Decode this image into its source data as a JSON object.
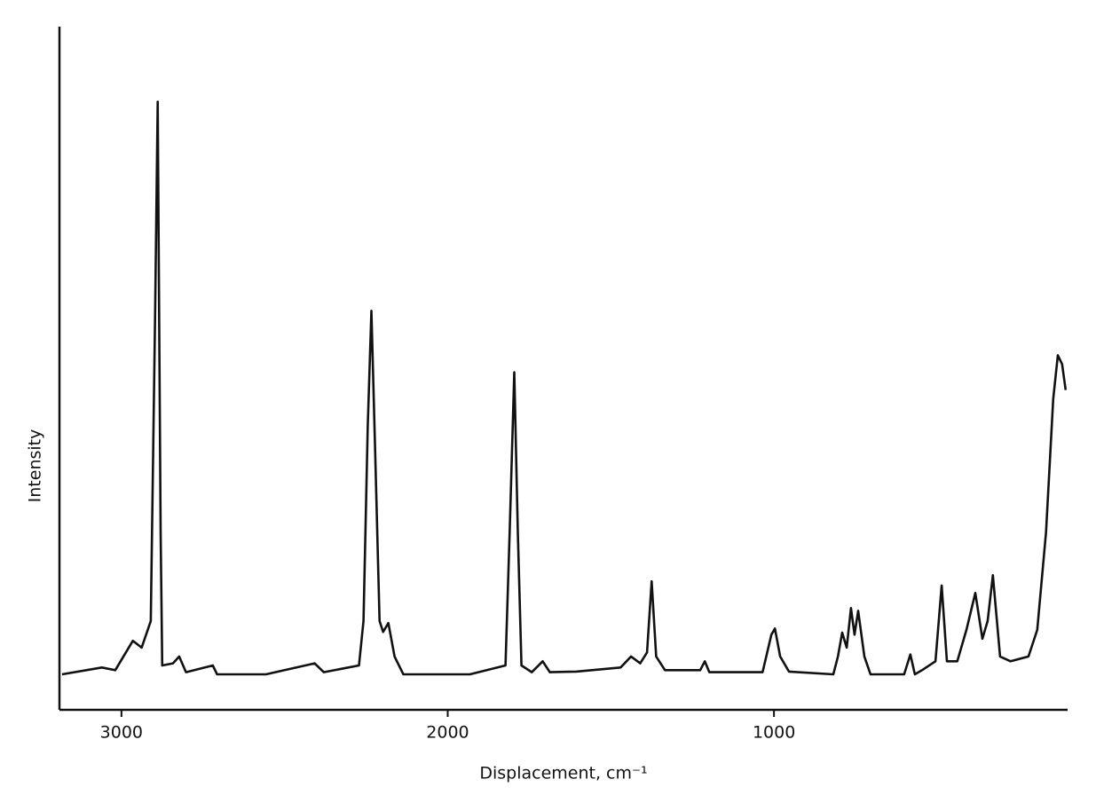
{
  "chart_data": {
    "type": "line",
    "x_label": "Displacement, cm⁻¹",
    "y_label": "Intensity",
    "xlim": [
      3190,
      100
    ],
    "xticks": [
      3000,
      2000,
      1000
    ],
    "ylim": [
      0,
      100
    ],
    "color": "#111111",
    "x": [
      3182,
      3060,
      3019,
      2965,
      2938,
      2910,
      2897,
      2889,
      2880,
      2875,
      2842,
      2823,
      2802,
      2720,
      2707,
      2557,
      2408,
      2380,
      2272,
      2258,
      2245,
      2234,
      2223,
      2209,
      2198,
      2182,
      2163,
      2136,
      1932,
      1823,
      1810,
      1796,
      1785,
      1774,
      1742,
      1709,
      1687,
      1606,
      1470,
      1438,
      1410,
      1389,
      1375,
      1361,
      1334,
      1226,
      1212,
      1198,
      1035,
      1008,
      997,
      981,
      954,
      818,
      804,
      791,
      777,
      764,
      753,
      742,
      723,
      704,
      601,
      582,
      568,
      546,
      505,
      486,
      470,
      438,
      410,
      383,
      361,
      345,
      329,
      307,
      275,
      220,
      193,
      166,
      144,
      130,
      117,
      106
    ],
    "values": [
      5.2,
      6.2,
      5.8,
      10.1,
      9.1,
      13.0,
      57.1,
      89.0,
      26.0,
      6.5,
      6.8,
      7.8,
      5.5,
      6.5,
      5.2,
      5.2,
      6.8,
      5.5,
      6.5,
      13.0,
      41.6,
      58.4,
      39.0,
      13.0,
      11.4,
      12.7,
      7.8,
      5.2,
      5.2,
      6.5,
      26.0,
      49.4,
      26.0,
      6.5,
      5.5,
      7.1,
      5.5,
      5.6,
      6.2,
      7.8,
      6.8,
      8.4,
      18.8,
      7.8,
      5.8,
      5.8,
      7.1,
      5.5,
      5.5,
      11.0,
      11.9,
      7.8,
      5.6,
      5.2,
      7.8,
      11.3,
      9.1,
      14.9,
      11.0,
      14.5,
      7.8,
      5.2,
      5.2,
      8.1,
      5.2,
      5.8,
      7.1,
      18.2,
      7.1,
      7.1,
      11.7,
      17.1,
      10.4,
      13.0,
      19.7,
      7.8,
      7.1,
      7.8,
      11.7,
      26.0,
      45.5,
      51.9,
      50.6,
      46.8
    ]
  }
}
